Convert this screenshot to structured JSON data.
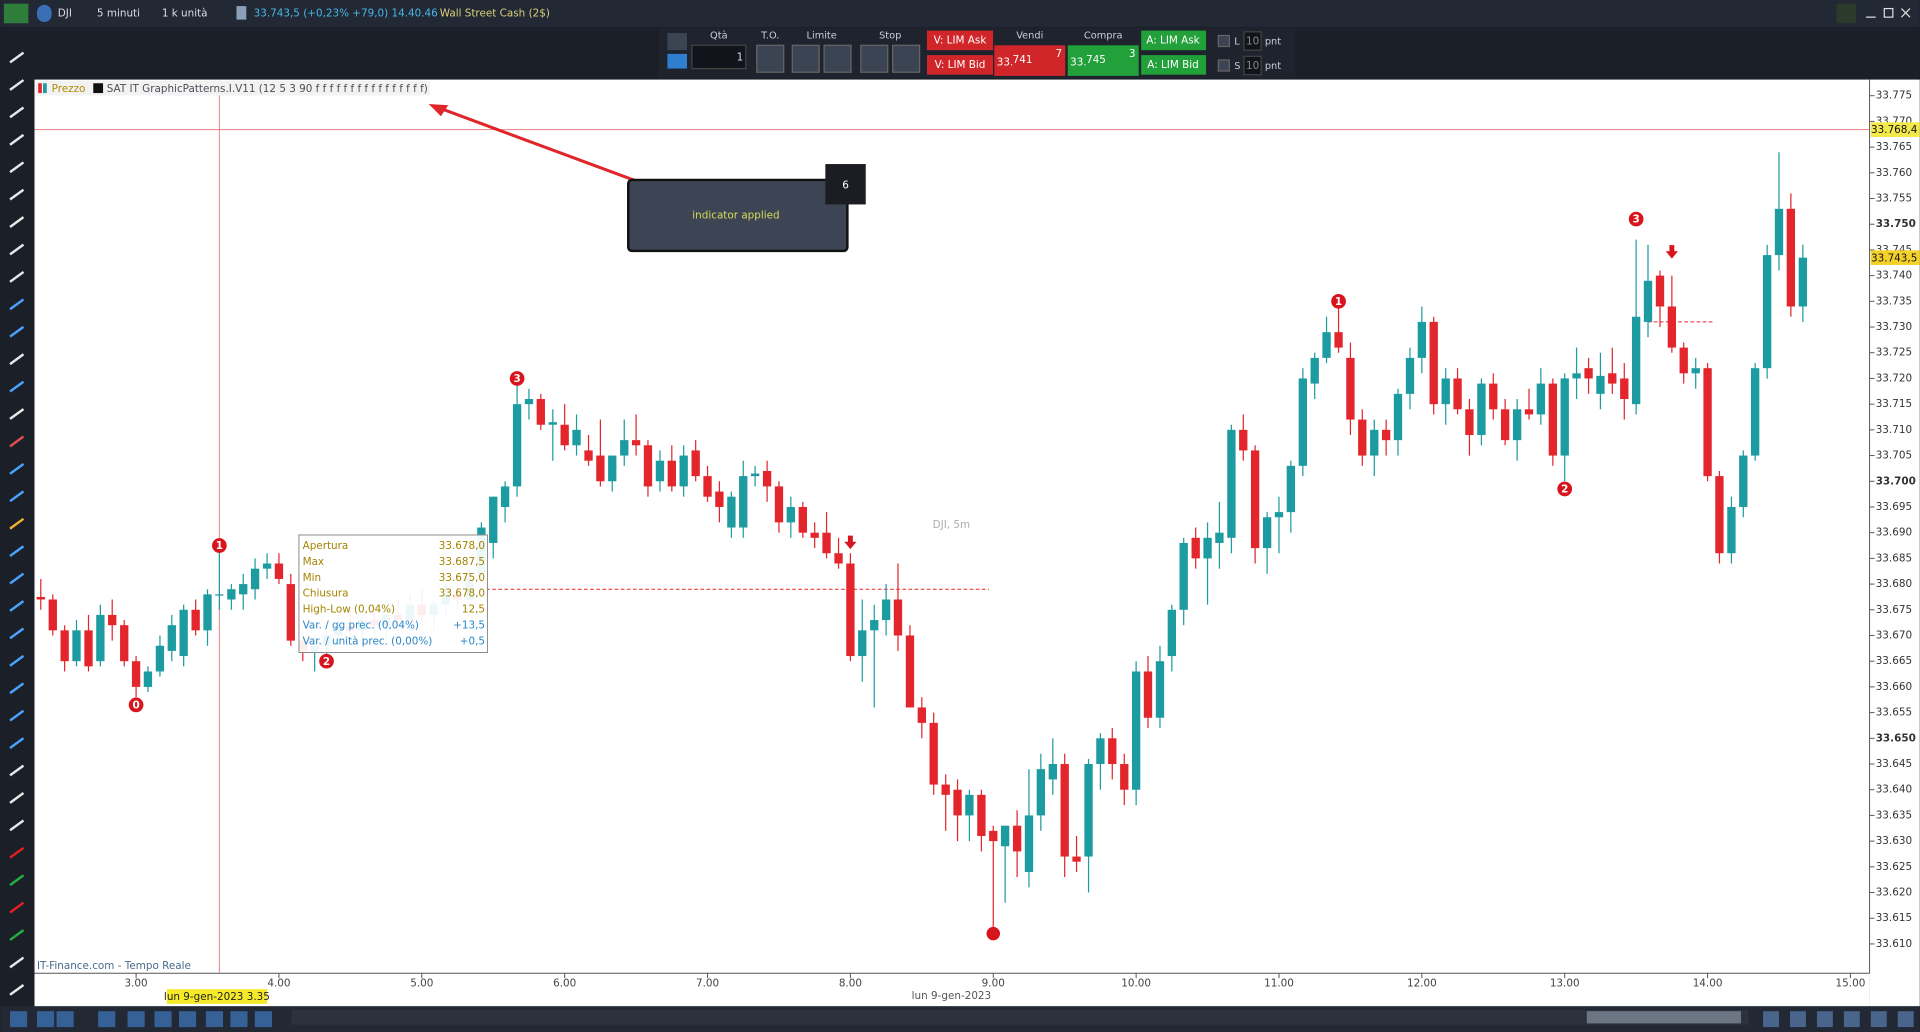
{
  "toolbar": {
    "symbol": "DJI",
    "timeframe": "5 minuti",
    "units": "1 k unità",
    "quote": "33.743,5 (+0,23% +79,0) 14.40.46",
    "market": "Wall Street Cash (2$)"
  },
  "order_panel": {
    "qty_label": "Qtà",
    "qty": "1",
    "to_label": "T.O.",
    "limit_label": "Limite",
    "stop_label": "Stop",
    "v_lim_ask": "V: LIM Ask",
    "v_lim_bid": "V: LIM Bid",
    "sell_label": "Vendi",
    "sell_prefix": "33.",
    "sell_price": "741",
    "sell_decimal": "7",
    "buy_label": "Compra",
    "buy_prefix": "33.",
    "buy_price": "745",
    "buy_decimal": "3",
    "a_lim_ask": "A: LIM Ask",
    "a_lim_bid": "A: LIM Bid",
    "l_label": "L",
    "l_value": "10",
    "l_unit": "pnt",
    "s_label": "S",
    "s_value": "10",
    "s_unit": "pnt"
  },
  "legend": {
    "price": "Prezzo",
    "indicator": "SAT IT GraphicPatterns.I.V11 (12 5 3 90 f f f f f f f f f f f f f f f f)"
  },
  "annotation": {
    "text": "indicator applied",
    "badge": "6"
  },
  "tooltip": {
    "rows": [
      [
        "Apertura",
        "33.678,0"
      ],
      [
        "Max",
        "33.687,5"
      ],
      [
        "Min",
        "33.675,0"
      ],
      [
        "Chiusura",
        "33.678,0"
      ],
      [
        "High-Low (0,04%)",
        "12,5"
      ],
      [
        "Var. / gg prec. (0,04%)",
        "+13,5"
      ],
      [
        "Var. / unità prec. (0,00%)",
        "+0,5"
      ]
    ]
  },
  "footer": {
    "source": "IT-Finance.com - Tempo Reale",
    "cursor_date": "lun 9-gen-2023 3.35",
    "date": "lun 9-gen-2023"
  },
  "chart_data": {
    "type": "candlestick",
    "title": "DJI, 5m",
    "up_color": "#1c9ba0",
    "down_color": "#e3262c",
    "xlim": [
      2.289,
      15.134
    ],
    "ylim": [
      33604.3,
      33777.9
    ],
    "xticks": [
      {
        "value": 3,
        "label": "3.00"
      },
      {
        "value": 4,
        "label": "4.00"
      },
      {
        "value": 5,
        "label": "5.00"
      },
      {
        "value": 6,
        "label": "6.00"
      },
      {
        "value": 7,
        "label": "7.00"
      },
      {
        "value": 8,
        "label": "8.00"
      },
      {
        "value": 9,
        "label": "9.00"
      },
      {
        "value": 10,
        "label": "10.00"
      },
      {
        "value": 11,
        "label": "11.00"
      },
      {
        "value": 12,
        "label": "12.00"
      },
      {
        "value": 13,
        "label": "13.00"
      },
      {
        "value": 14,
        "label": "14.00"
      },
      {
        "value": 15,
        "label": "15.00"
      }
    ],
    "yticks": [
      {
        "value": 33610,
        "label": "33.610"
      },
      {
        "value": 33615,
        "label": "33.615"
      },
      {
        "value": 33620,
        "label": "33.620"
      },
      {
        "value": 33625,
        "label": "33.625"
      },
      {
        "value": 33630,
        "label": "33.630"
      },
      {
        "value": 33635,
        "label": "33.635"
      },
      {
        "value": 33640,
        "label": "33.640"
      },
      {
        "value": 33645,
        "label": "33.645"
      },
      {
        "value": 33650,
        "label": "33.650"
      },
      {
        "value": 33655,
        "label": "33.655"
      },
      {
        "value": 33660,
        "label": "33.660"
      },
      {
        "value": 33665,
        "label": "33.665"
      },
      {
        "value": 33670,
        "label": "33.670"
      },
      {
        "value": 33675,
        "label": "33.675"
      },
      {
        "value": 33680,
        "label": "33.680"
      },
      {
        "value": 33685,
        "label": "33.685"
      },
      {
        "value": 33690,
        "label": "33.690"
      },
      {
        "value": 33695,
        "label": "33.695"
      },
      {
        "value": 33700,
        "label": "33.700"
      },
      {
        "value": 33705,
        "label": "33.705"
      },
      {
        "value": 33710,
        "label": "33.710"
      },
      {
        "value": 33715,
        "label": "33.715"
      },
      {
        "value": 33720,
        "label": "33.720"
      },
      {
        "value": 33725,
        "label": "33.725"
      },
      {
        "value": 33730,
        "label": "33.730"
      },
      {
        "value": 33735,
        "label": "33.735"
      },
      {
        "value": 33740,
        "label": "33.740"
      },
      {
        "value": 33745,
        "label": "33.745"
      },
      {
        "value": 33750,
        "label": "33.750"
      },
      {
        "value": 33755,
        "label": "33.755"
      },
      {
        "value": 33760,
        "label": "33.760"
      },
      {
        "value": 33765,
        "label": "33.765"
      },
      {
        "value": 33770,
        "label": "33.770"
      },
      {
        "value": 33775,
        "label": "33.775"
      }
    ],
    "x": [
      2.333,
      2.417,
      2.5,
      2.583,
      2.667,
      2.75,
      2.833,
      2.917,
      3,
      3.083,
      3.167,
      3.25,
      3.333,
      3.417,
      3.5,
      3.583,
      3.667,
      3.75,
      3.833,
      3.917,
      4,
      4.083,
      4.167,
      4.25,
      4.333,
      4.417,
      4.5,
      4.583,
      4.667,
      4.75,
      4.833,
      4.917,
      5,
      5.083,
      5.167,
      5.25,
      5.333,
      5.417,
      5.5,
      5.583,
      5.667,
      5.75,
      5.833,
      5.917,
      6,
      6.083,
      6.167,
      6.25,
      6.333,
      6.417,
      6.5,
      6.583,
      6.667,
      6.75,
      6.833,
      6.917,
      7,
      7.083,
      7.167,
      7.25,
      7.333,
      7.417,
      7.5,
      7.583,
      7.667,
      7.75,
      7.833,
      7.917,
      8,
      8.083,
      8.167,
      8.25,
      8.333,
      8.417,
      8.5,
      8.583,
      8.667,
      8.75,
      8.833,
      8.917,
      9,
      9.083,
      9.167,
      9.25,
      9.333,
      9.417,
      9.5,
      9.583,
      9.667,
      9.75,
      9.833,
      9.917,
      10,
      10.083,
      10.167,
      10.25,
      10.333,
      10.417,
      10.5,
      10.583,
      10.667,
      10.75,
      10.833,
      10.917,
      11,
      11.083,
      11.167,
      11.25,
      11.333,
      11.417,
      11.5,
      11.583,
      11.667,
      11.75,
      11.833,
      11.917,
      12,
      12.083,
      12.167,
      12.25,
      12.333,
      12.417,
      12.5,
      12.583,
      12.667,
      12.75,
      12.833,
      12.917,
      13,
      13.083,
      13.167,
      13.25,
      13.333,
      13.417,
      13.5,
      13.583,
      13.667,
      13.75,
      13.833,
      13.917,
      14,
      14.083,
      14.167,
      14.25,
      14.333,
      14.417,
      14.5,
      14.583,
      14.667
    ],
    "open": [
      33677.5,
      33677,
      33671,
      33665,
      33671,
      33665,
      33674,
      33672,
      33665,
      33660,
      33663,
      33667,
      33666,
      33675,
      33671,
      33678,
      33677,
      33678,
      33679,
      33683,
      33684,
      33680,
      33669,
      33667,
      33668,
      33670,
      33672,
      33671,
      33673,
      33672,
      33674,
      33673,
      33676,
      33674,
      33676,
      33678,
      33677,
      33682,
      33688,
      33695,
      33699,
      33715,
      33716,
      33711,
      33711,
      33707,
      33706,
      33705,
      33700,
      33705,
      33708,
      33707,
      33700,
      33704,
      33699,
      33706,
      33701,
      33698,
      33691,
      33691,
      33701,
      33702,
      33699,
      33692,
      33695,
      33690,
      33690,
      33686,
      33684,
      33666,
      33671,
      33673,
      33677,
      33670,
      33656,
      33653,
      33641,
      33640,
      33635,
      33639,
      33632,
      33629,
      33633,
      33624,
      33635,
      33642,
      33645,
      33627,
      33627,
      33645,
      33650,
      33645,
      33640,
      33663,
      33654,
      33666,
      33675,
      33689,
      33685,
      33688,
      33689,
      33710,
      33706,
      33687,
      33693,
      33694,
      33703,
      33719,
      33724,
      33729,
      33724,
      33712,
      33705,
      33710,
      33708,
      33717,
      33724,
      33731,
      33715,
      33720,
      33714,
      33709,
      33719,
      33714,
      33708,
      33714,
      33713,
      33719,
      33705,
      33720,
      33722,
      33717,
      33721,
      33720,
      33715,
      33731,
      33740,
      33734,
      33726,
      33721,
      33722,
      33701,
      33686,
      33695,
      33705,
      33722,
      33744,
      33753,
      33734
    ],
    "high": [
      33681,
      33678,
      33672,
      33673,
      33674,
      33676,
      33677,
      33673,
      33666,
      33664,
      33670,
      33674,
      33676,
      33677,
      33679,
      33687.5,
      33680,
      33682,
      33685,
      33686,
      33686,
      33682,
      33671,
      33670,
      33672,
      33674,
      33675,
      33674,
      33676,
      33675,
      33677,
      33678,
      33679,
      33677,
      33680,
      33681,
      33683,
      33692,
      33697,
      33700,
      33719,
      33718,
      33717,
      33714,
      33715,
      33713,
      33709,
      33712,
      33705,
      33712,
      33713,
      33708,
      33706,
      33707,
      33707,
      33708,
      33703,
      33700,
      33698,
      33704,
      33703,
      33704,
      33700,
      33697,
      33696,
      33692,
      33694,
      33689,
      33686,
      33677,
      33676,
      33680,
      33684,
      33672,
      33658,
      33655,
      33643,
      33642,
      33640,
      33640,
      33633,
      33633,
      33636,
      33644,
      33647,
      33650,
      33647,
      33631,
      33646,
      33651,
      33652,
      33647,
      33665,
      33666,
      33668,
      33676,
      33689,
      33691,
      33692,
      33696,
      33711,
      33713,
      33707,
      33694,
      33697,
      33704,
      33722,
      33725,
      33732,
      33734,
      33727,
      33714,
      33712,
      33712,
      33718,
      33726,
      33734,
      33732,
      33722,
      33722,
      33716,
      33720,
      33721,
      33716,
      33716,
      33718,
      33722,
      33720,
      33721,
      33726,
      33724,
      33725,
      33726,
      33723,
      33747,
      33746,
      33741,
      33740,
      33727,
      33724,
      33723,
      33702,
      33697,
      33706,
      33723,
      33746,
      33764,
      33756,
      33746
    ],
    "low": [
      33675,
      33670,
      33663,
      33664,
      33663,
      33664,
      33669,
      33664,
      33658,
      33659,
      33662,
      33665,
      33664,
      33670,
      33668,
      33675,
      33675,
      33675,
      33677,
      33681,
      33680,
      33668,
      33665,
      33663,
      33666,
      33668,
      33669,
      33668,
      33670,
      33669,
      33671,
      33671,
      33672,
      33671,
      33674,
      33675,
      33677,
      33680,
      33685,
      33692,
      33697,
      33712,
      33710,
      33704,
      33706,
      33705,
      33703,
      33699,
      33698,
      33703,
      33705,
      33697,
      33698,
      33698,
      33697,
      33700,
      33696,
      33692,
      33689,
      33689,
      33699,
      33696,
      33690,
      33689,
      33689,
      33687,
      33685,
      33683,
      33665,
      33661,
      33656,
      33670,
      33667,
      33656,
      33650,
      33639,
      33632,
      33630,
      33630,
      33628,
      33612,
      33618,
      33623,
      33621,
      33632,
      33639,
      33623,
      33624,
      33620,
      33640,
      33642,
      33637,
      33637,
      33652,
      33652,
      33663,
      33672,
      33683,
      33676,
      33683,
      33686,
      33704,
      33684,
      33682,
      33686,
      33690,
      33701,
      33716,
      33723,
      33725,
      33709,
      33703,
      33701,
      33705,
      33705,
      33714,
      33721,
      33713,
      33711,
      33713,
      33705,
      33707,
      33712,
      33707,
      33704,
      33712,
      33711,
      33703,
      33700,
      33716,
      33717,
      33714,
      33717,
      33712,
      33713,
      33728,
      33730,
      33725,
      33719,
      33718,
      33700,
      33684,
      33684,
      33693,
      33704,
      33720,
      33741,
      33732,
      33731
    ],
    "close": [
      33677,
      33671,
      33665,
      33671,
      33664,
      33674,
      33672,
      33665,
      33660,
      33663,
      33668,
      33672,
      33675,
      33671,
      33678,
      33678,
      33679,
      33680,
      33683,
      33684,
      33681,
      33669,
      33667,
      33668,
      33670,
      33672,
      33671,
      33673,
      33672,
      33674,
      33673,
      33676,
      33674,
      33676,
      33678,
      33677,
      33681,
      33691,
      33697,
      33699,
      33715,
      33716,
      33711,
      33711.5,
      33707,
      33710,
      33704,
      33700,
      33705,
      33708,
      33707,
      33699,
      33704,
      33699,
      33705,
      33701,
      33697,
      33695,
      33697,
      33701,
      33701.5,
      33699,
      33692,
      33695,
      33690,
      33689,
      33686,
      33684,
      33666,
      33671,
      33673,
      33677,
      33670,
      33656,
      33653,
      33641,
      33639,
      33635,
      33639,
      33631,
      33630,
      33633,
      33628,
      33635,
      33644,
      33645,
      33627,
      33626,
      33645,
      33650,
      33645,
      33640,
      33663,
      33654,
      33665,
      33675,
      33688,
      33685,
      33689,
      33690,
      33710,
      33706,
      33687,
      33693,
      33694,
      33703,
      33720,
      33724,
      33729,
      33726,
      33712,
      33705,
      33710,
      33708,
      33717,
      33724,
      33731,
      33715,
      33720,
      33714,
      33709,
      33719,
      33714,
      33708,
      33714,
      33713,
      33719,
      33705,
      33720,
      33721,
      33720,
      33720.5,
      33719,
      33716,
      33732,
      33739,
      33734,
      33726,
      33721,
      33722,
      33701,
      33686,
      33695,
      33705,
      33722,
      33744,
      33753,
      33734,
      33743.5
    ],
    "markers": [
      {
        "label": "0",
        "x": 3,
        "value": 33656.5
      },
      {
        "label": "1",
        "x": 3.583,
        "value": 33687.5
      },
      {
        "label": "2",
        "x": 4.333,
        "value": 33665
      },
      {
        "label": "3",
        "x": 5.667,
        "value": 33720
      },
      {
        "label": "1",
        "x": 11.417,
        "value": 33735
      },
      {
        "label": "2",
        "x": 13,
        "value": 33698.5
      },
      {
        "label": "3",
        "x": 13.5,
        "value": 33751
      }
    ],
    "arrows": [
      {
        "x": 8,
        "value": 33688
      },
      {
        "x": 13.75,
        "value": 33744.5
      }
    ],
    "dots": [
      {
        "x": 9,
        "value": 33612
      }
    ],
    "levels": [
      {
        "value": 33679,
        "from": 5.45,
        "to": 8.97
      },
      {
        "value": 33731,
        "from": 13.58,
        "to": 14.05
      }
    ],
    "crosshair": {
      "x": 3.583,
      "value": 33768.4,
      "label": "33.768,4"
    },
    "last_price": {
      "value": 33743.5,
      "label": "33.743,5"
    }
  }
}
